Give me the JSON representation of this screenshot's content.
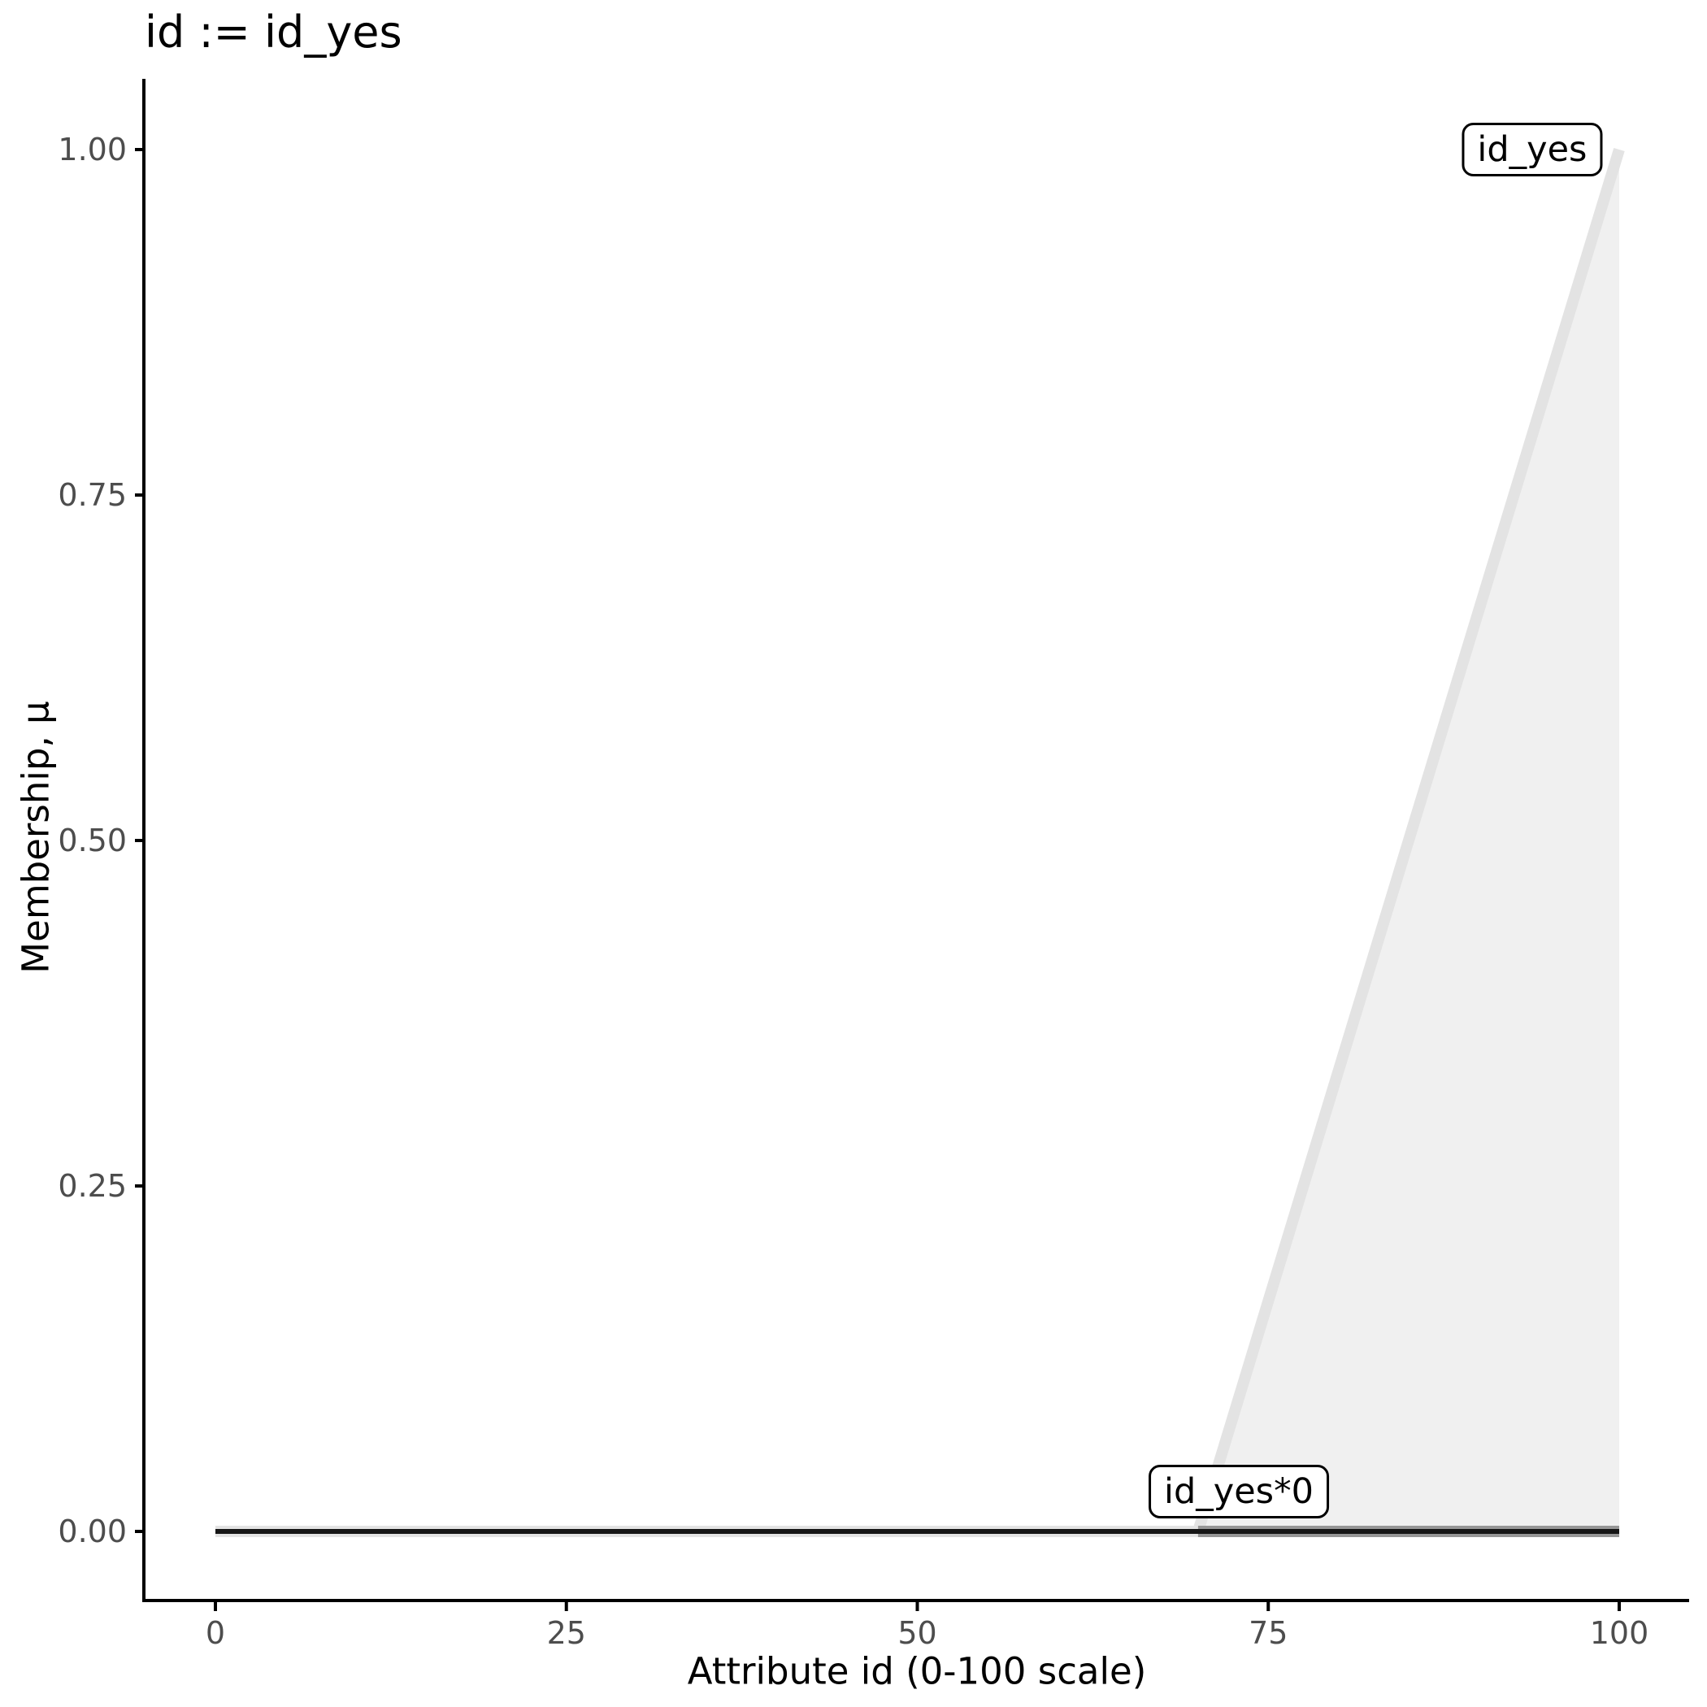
{
  "colors": {
    "background": "#ffffff",
    "axis_line": "#000000",
    "tick_label": "#4d4d4d",
    "title_text": "#000000",
    "fill_area": "#f0f0f0",
    "set_line": "#e3e3e3",
    "scaled_set_line": "#969696",
    "result_line": "#161616",
    "annotation_border": "#000000",
    "annotation_bg": "#ffffff"
  },
  "chart_data": {
    "type": "area",
    "title": "id := id_yes",
    "xlabel": "Attribute id (0-100 scale)",
    "ylabel": "Membership, μ",
    "xlim": [
      0,
      100
    ],
    "ylim": [
      0,
      1
    ],
    "grid": "off",
    "x_ticks": {
      "values": [
        0,
        25,
        50,
        75,
        100
      ],
      "labels": [
        "0",
        "25",
        "50",
        "75",
        "100"
      ]
    },
    "y_ticks": {
      "values": [
        0,
        0.25,
        0.5,
        0.75,
        1
      ],
      "labels": [
        "0.00",
        "0.25",
        "0.50",
        "0.75",
        "1.00"
      ]
    },
    "fill_region": {
      "series": "id_yes",
      "color": "#f0f0f0",
      "points": [
        [
          70,
          0
        ],
        [
          100,
          1
        ],
        [
          100,
          0
        ]
      ]
    },
    "series": [
      {
        "name": "id_yes",
        "description": "triangular membership function rising from 0 at attribute 70 to 1 at attribute 100",
        "color": "#e3e3e3",
        "width": 14,
        "points": [
          [
            0,
            0
          ],
          [
            70,
            0
          ],
          [
            100,
            1
          ]
        ]
      },
      {
        "name": "id_yes*0",
        "description": "id_yes scaled by 0 over its support [70,100]",
        "color": "#969696",
        "width": 14,
        "points": [
          [
            70,
            0
          ],
          [
            100,
            0
          ]
        ]
      },
      {
        "name": "id",
        "description": "resulting membership, 0 over whole universe",
        "color": "#161616",
        "width": 6,
        "points": [
          [
            0,
            0
          ],
          [
            100,
            0
          ]
        ]
      }
    ],
    "annotations": [
      {
        "text": "id_yes",
        "x": 93.8,
        "y": 1.0
      },
      {
        "text": "id_yes*0",
        "x": 72.9,
        "y": 0.029
      }
    ]
  }
}
